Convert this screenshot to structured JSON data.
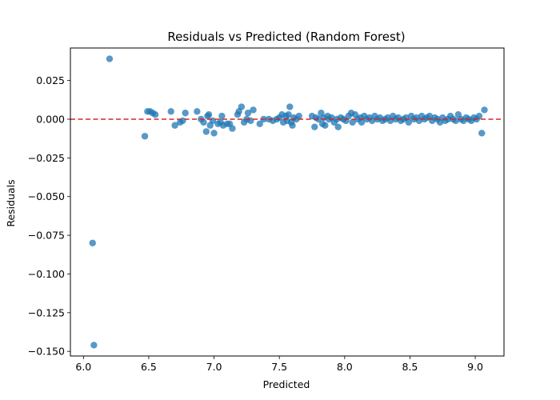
{
  "chart_data": {
    "type": "scatter",
    "title": "Residuals vs Predicted (Random Forest)",
    "xlabel": "Predicted",
    "ylabel": "Residuals",
    "xlim": [
      5.9,
      9.22
    ],
    "ylim": [
      -0.153,
      0.046
    ],
    "xticks": [
      6.0,
      6.5,
      7.0,
      7.5,
      8.0,
      8.5,
      9.0
    ],
    "xtick_labels": [
      "6.0",
      "6.5",
      "7.0",
      "7.5",
      "8.0",
      "8.5",
      "9.0"
    ],
    "yticks": [
      0.025,
      0.0,
      -0.025,
      -0.05,
      -0.075,
      -0.1,
      -0.125,
      -0.15
    ],
    "ytick_labels": [
      "0.025",
      "0.000",
      "−0.025",
      "−0.050",
      "−0.075",
      "−0.100",
      "−0.125",
      "−0.150"
    ],
    "grid": false,
    "reference_line": {
      "y": 0.0,
      "color": "#d62728",
      "style": "dashed"
    },
    "marker_color": "#1f77b4",
    "points": [
      [
        6.07,
        -0.08
      ],
      [
        6.08,
        -0.146
      ],
      [
        6.2,
        0.039
      ],
      [
        6.47,
        -0.011
      ],
      [
        6.49,
        0.005
      ],
      [
        6.51,
        0.005
      ],
      [
        6.53,
        0.004
      ],
      [
        6.55,
        0.003
      ],
      [
        6.67,
        0.005
      ],
      [
        6.7,
        -0.004
      ],
      [
        6.74,
        -0.002
      ],
      [
        6.76,
        -0.001
      ],
      [
        6.78,
        0.004
      ],
      [
        6.87,
        0.005
      ],
      [
        6.9,
        0.0
      ],
      [
        6.92,
        -0.002
      ],
      [
        6.94,
        -0.008
      ],
      [
        6.95,
        0.002
      ],
      [
        6.96,
        0.003
      ],
      [
        6.97,
        -0.004
      ],
      [
        6.99,
        -0.001
      ],
      [
        7.0,
        -0.009
      ],
      [
        7.03,
        -0.003
      ],
      [
        7.05,
        -0.002
      ],
      [
        7.06,
        0.002
      ],
      [
        7.07,
        -0.004
      ],
      [
        7.1,
        -0.003
      ],
      [
        7.12,
        -0.003
      ],
      [
        7.14,
        -0.006
      ],
      [
        7.18,
        0.003
      ],
      [
        7.19,
        0.005
      ],
      [
        7.21,
        0.008
      ],
      [
        7.23,
        -0.002
      ],
      [
        7.25,
        0.0
      ],
      [
        7.26,
        0.004
      ],
      [
        7.28,
        -0.001
      ],
      [
        7.3,
        0.006
      ],
      [
        7.35,
        -0.003
      ],
      [
        7.38,
        0.0
      ],
      [
        7.42,
        0.0
      ],
      [
        7.45,
        -0.001
      ],
      [
        7.48,
        0.0
      ],
      [
        7.5,
        0.001
      ],
      [
        7.52,
        0.003
      ],
      [
        7.53,
        -0.002
      ],
      [
        7.55,
        0.002
      ],
      [
        7.56,
        -0.001
      ],
      [
        7.57,
        0.003
      ],
      [
        7.58,
        0.008
      ],
      [
        7.59,
        -0.002
      ],
      [
        7.6,
        -0.004
      ],
      [
        7.61,
        0.001
      ],
      [
        7.63,
        0.0
      ],
      [
        7.65,
        0.002
      ],
      [
        7.75,
        0.002
      ],
      [
        7.77,
        -0.005
      ],
      [
        7.78,
        0.001
      ],
      [
        7.8,
        0.0
      ],
      [
        7.82,
        0.004
      ],
      [
        7.83,
        -0.003
      ],
      [
        7.84,
        0.001
      ],
      [
        7.85,
        -0.004
      ],
      [
        7.87,
        0.002
      ],
      [
        7.88,
        0.0
      ],
      [
        7.9,
        0.001
      ],
      [
        7.92,
        -0.002
      ],
      [
        7.94,
        0.0
      ],
      [
        7.95,
        -0.005
      ],
      [
        7.97,
        0.001
      ],
      [
        7.99,
        0.0
      ],
      [
        8.01,
        -0.001
      ],
      [
        8.03,
        0.002
      ],
      [
        8.05,
        0.004
      ],
      [
        8.06,
        -0.002
      ],
      [
        8.08,
        0.003
      ],
      [
        8.1,
        0.0
      ],
      [
        8.12,
        0.001
      ],
      [
        8.13,
        -0.002
      ],
      [
        8.15,
        0.002
      ],
      [
        8.17,
        0.0
      ],
      [
        8.19,
        0.001
      ],
      [
        8.21,
        -0.001
      ],
      [
        8.23,
        0.002
      ],
      [
        8.25,
        0.0
      ],
      [
        8.27,
        0.001
      ],
      [
        8.29,
        -0.001
      ],
      [
        8.31,
        0.0
      ],
      [
        8.33,
        0.001
      ],
      [
        8.35,
        -0.001
      ],
      [
        8.37,
        0.002
      ],
      [
        8.39,
        0.0
      ],
      [
        8.41,
        0.001
      ],
      [
        8.43,
        -0.001
      ],
      [
        8.45,
        0.0
      ],
      [
        8.47,
        0.001
      ],
      [
        8.49,
        -0.002
      ],
      [
        8.51,
        0.002
      ],
      [
        8.53,
        0.0
      ],
      [
        8.55,
        0.001
      ],
      [
        8.57,
        -0.001
      ],
      [
        8.59,
        0.002
      ],
      [
        8.61,
        0.0
      ],
      [
        8.63,
        0.001
      ],
      [
        8.65,
        0.002
      ],
      [
        8.67,
        -0.001
      ],
      [
        8.69,
        0.001
      ],
      [
        8.71,
        0.0
      ],
      [
        8.73,
        -0.002
      ],
      [
        8.75,
        0.001
      ],
      [
        8.77,
        -0.001
      ],
      [
        8.79,
        0.0
      ],
      [
        8.81,
        0.002
      ],
      [
        8.83,
        0.0
      ],
      [
        8.85,
        -0.001
      ],
      [
        8.87,
        0.003
      ],
      [
        8.89,
        0.0
      ],
      [
        8.91,
        -0.001
      ],
      [
        8.93,
        0.001
      ],
      [
        8.95,
        0.0
      ],
      [
        8.97,
        -0.001
      ],
      [
        8.99,
        0.001
      ],
      [
        9.01,
        0.0
      ],
      [
        9.03,
        0.002
      ],
      [
        9.05,
        -0.009
      ],
      [
        9.07,
        0.006
      ]
    ]
  }
}
